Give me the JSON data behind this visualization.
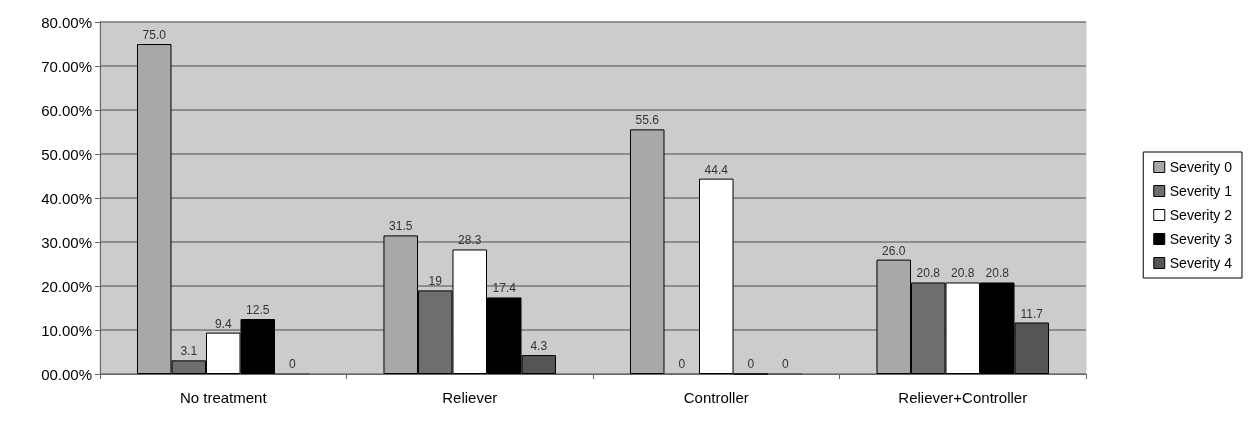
{
  "chart_data": {
    "type": "bar",
    "categories": [
      "No treatment",
      "Reliever",
      "Controller",
      "Reliever+Controller"
    ],
    "series": [
      {
        "name": "Severity 0",
        "color": "#a8a8a8",
        "values": [
          75.0,
          31.5,
          55.6,
          26.0
        ],
        "value_labels": [
          "75.0",
          "31.5",
          "55.6",
          "26.0"
        ]
      },
      {
        "name": "Severity 1",
        "color": "#6e6e6e",
        "values": [
          3.1,
          19,
          0,
          20.8
        ],
        "value_labels": [
          "3.1",
          "19",
          "0",
          "20.8"
        ]
      },
      {
        "name": "Severity 2",
        "color": "#ffffff",
        "values": [
          9.4,
          28.3,
          44.4,
          20.8
        ],
        "value_labels": [
          "9.4",
          "28.3",
          "44.4",
          "20.8"
        ]
      },
      {
        "name": "Severity 3",
        "color": "#000000",
        "values": [
          12.5,
          17.4,
          0,
          20.8
        ],
        "value_labels": [
          "12.5",
          "17.4",
          "0",
          "20.8"
        ]
      },
      {
        "name": "Severity 4",
        "color": "#555555",
        "values": [
          0,
          4.3,
          0,
          11.7
        ],
        "value_labels": [
          "0",
          "4.3",
          "0",
          "11.7"
        ]
      }
    ],
    "ylim": [
      0,
      80
    ],
    "yticks": [
      {
        "value": 0,
        "label": "00.00%"
      },
      {
        "value": 10,
        "label": "10.00%"
      },
      {
        "value": 20,
        "label": "20.00%"
      },
      {
        "value": 30,
        "label": "30.00%"
      },
      {
        "value": 40,
        "label": "40.00%"
      },
      {
        "value": 50,
        "label": "50.00%"
      },
      {
        "value": 60,
        "label": "60.00%"
      },
      {
        "value": 70,
        "label": "70.00%"
      },
      {
        "value": 80,
        "label": "80.00%"
      }
    ],
    "grid": "y",
    "legend": "right"
  }
}
